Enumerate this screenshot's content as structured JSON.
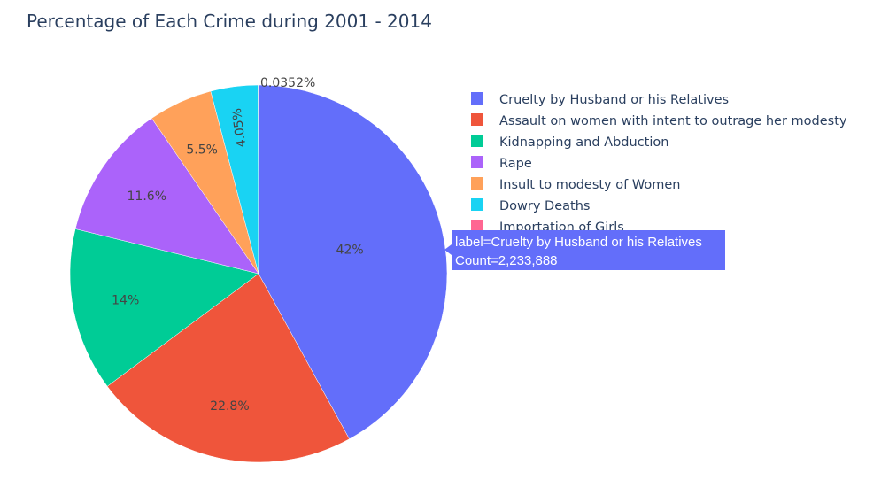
{
  "chart_data": {
    "type": "pie",
    "title": "Percentage of Each Crime during 2001 - 2014",
    "slices": [
      {
        "label": "Cruelty by Husband or his Relatives",
        "percent": 42.0,
        "percent_label": "42%",
        "color": "#636efa"
      },
      {
        "label": "Assault on women with intent to outrage her modesty",
        "percent": 22.8,
        "percent_label": "22.8%",
        "color": "#ef553b"
      },
      {
        "label": "Kidnapping and Abduction",
        "percent": 14.0,
        "percent_label": "14%",
        "color": "#00cc96"
      },
      {
        "label": "Rape",
        "percent": 11.6,
        "percent_label": "11.6%",
        "color": "#ab63fa"
      },
      {
        "label": "Insult to modesty of Women",
        "percent": 5.5,
        "percent_label": "5.5%",
        "color": "#ffa15a"
      },
      {
        "label": "Dowry Deaths",
        "percent": 4.05,
        "percent_label": "4.05%",
        "color": "#19d3f3"
      },
      {
        "label": "Importation of Girls",
        "percent": 0.0352,
        "percent_label": "0.0352%",
        "color": "#ff6692"
      }
    ],
    "legend": {
      "position": "right",
      "items": [
        "Cruelty by Husband or his Relatives",
        "Assault on women with intent to outrage her modesty",
        "Kidnapping and Abduction",
        "Rape",
        "Insult to modesty of Women",
        "Dowry Deaths",
        "Importation of Girls"
      ]
    },
    "hover_tooltip": {
      "line1": "label=Cruelty by Husband or his Relatives",
      "line2": "Count=2,233,888",
      "color": "#636efa"
    }
  }
}
